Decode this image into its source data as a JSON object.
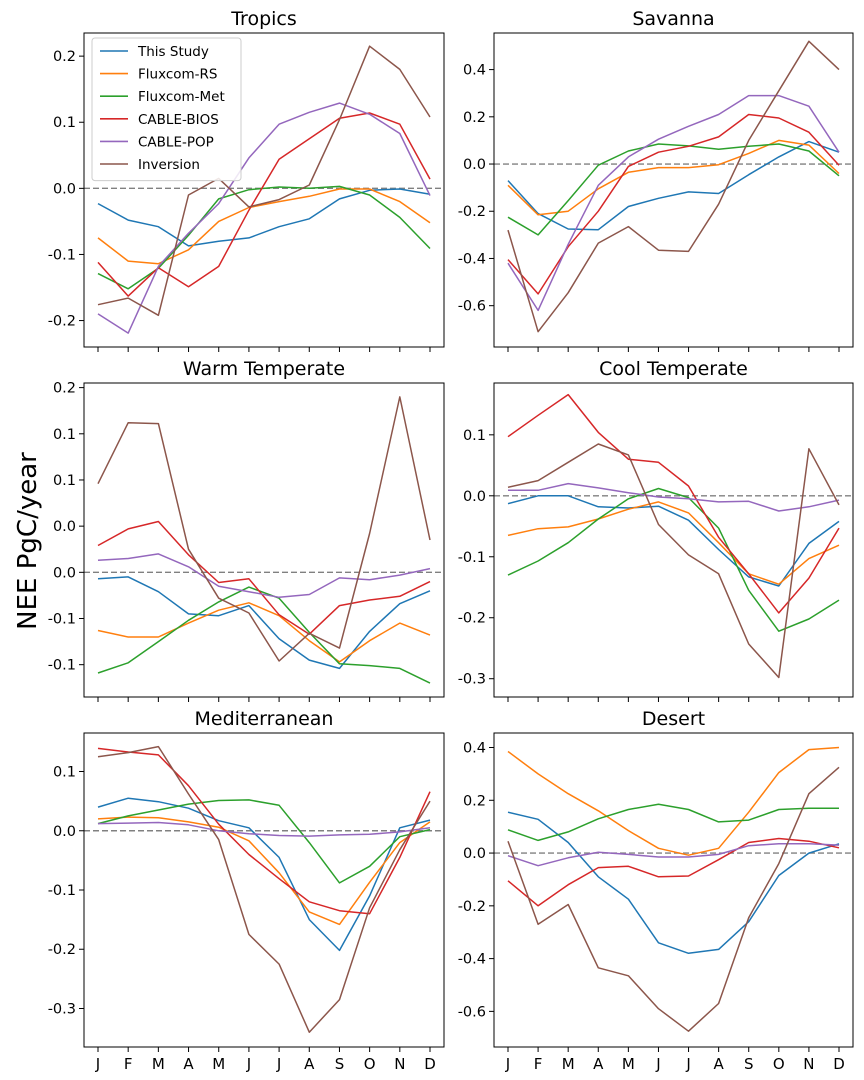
{
  "figure": {
    "ylabel": "NEE PgC/year",
    "legend_location": "upper-left of first panel"
  },
  "colors": {
    "This Study": "#1f77b4",
    "Fluxcom-RS": "#ff7f0e",
    "Fluxcom-Met": "#2ca02c",
    "CABLE-BIOS": "#d62728",
    "CABLE-POP": "#9467bd",
    "Inversion": "#8c564b",
    "zero_line": "#808080"
  },
  "chart_data": [
    {
      "type": "line",
      "title": "Tropics",
      "x": [
        "J",
        "F",
        "M",
        "A",
        "M",
        "J",
        "J",
        "A",
        "S",
        "O",
        "N",
        "D"
      ],
      "show_xticklabels": false,
      "ylim": [
        -0.24,
        0.235
      ],
      "yticks": [
        -0.2,
        -0.1,
        0.0,
        0.1,
        0.2
      ],
      "ytick_labels": [
        "-0.2",
        "-0.1",
        "0.0",
        "0.1",
        "0.2"
      ],
      "zero_line": true,
      "legend": [
        "This Study",
        "Fluxcom-RS",
        "Fluxcom-Met",
        "CABLE-BIOS",
        "CABLE-POP",
        "Inversion"
      ],
      "series": [
        {
          "name": "This Study",
          "values": [
            -0.023,
            -0.048,
            -0.058,
            -0.087,
            -0.08,
            -0.075,
            -0.058,
            -0.046,
            -0.016,
            -0.003,
            -0.001,
            -0.009
          ]
        },
        {
          "name": "Fluxcom-RS",
          "values": [
            -0.075,
            -0.11,
            -0.114,
            -0.093,
            -0.05,
            -0.029,
            -0.02,
            -0.012,
            -0.001,
            -0.001,
            -0.02,
            -0.052
          ]
        },
        {
          "name": "Fluxcom-Met",
          "values": [
            -0.129,
            -0.152,
            -0.121,
            -0.071,
            -0.016,
            -0.002,
            0.002,
            0.0,
            0.003,
            -0.01,
            -0.044,
            -0.091
          ]
        },
        {
          "name": "CABLE-BIOS",
          "values": [
            -0.112,
            -0.163,
            -0.12,
            -0.149,
            -0.118,
            -0.033,
            0.044,
            0.075,
            0.106,
            0.114,
            0.097,
            0.014
          ]
        },
        {
          "name": "CABLE-POP",
          "values": [
            -0.19,
            -0.219,
            -0.118,
            -0.068,
            -0.023,
            0.046,
            0.097,
            0.115,
            0.129,
            0.112,
            0.083,
            -0.011
          ]
        },
        {
          "name": "Inversion",
          "values": [
            -0.176,
            -0.166,
            -0.192,
            -0.01,
            0.015,
            -0.028,
            -0.017,
            0.005,
            0.104,
            0.215,
            0.18,
            0.108
          ]
        }
      ]
    },
    {
      "type": "line",
      "title": "Savanna",
      "x": [
        "J",
        "F",
        "M",
        "A",
        "M",
        "J",
        "J",
        "A",
        "S",
        "O",
        "N",
        "D"
      ],
      "show_xticklabels": false,
      "ylim": [
        -0.775,
        0.555
      ],
      "yticks": [
        -0.6,
        -0.4,
        -0.2,
        0.0,
        0.2,
        0.4
      ],
      "ytick_labels": [
        "-0.6",
        "-0.4",
        "-0.2",
        "0.0",
        "0.2",
        "0.4"
      ],
      "zero_line": true,
      "series": [
        {
          "name": "This Study",
          "values": [
            -0.07,
            -0.21,
            -0.275,
            -0.278,
            -0.18,
            -0.145,
            -0.118,
            -0.125,
            -0.045,
            0.03,
            0.095,
            0.05
          ]
        },
        {
          "name": "Fluxcom-RS",
          "values": [
            -0.09,
            -0.215,
            -0.2,
            -0.105,
            -0.035,
            -0.015,
            -0.015,
            -0.003,
            0.045,
            0.1,
            0.08,
            -0.04
          ]
        },
        {
          "name": "Fluxcom-Met",
          "values": [
            -0.225,
            -0.3,
            -0.155,
            -0.005,
            0.055,
            0.085,
            0.077,
            0.063,
            0.075,
            0.085,
            0.055,
            -0.05
          ]
        },
        {
          "name": "CABLE-BIOS",
          "values": [
            -0.405,
            -0.55,
            -0.35,
            -0.2,
            -0.01,
            0.05,
            0.075,
            0.115,
            0.21,
            0.195,
            0.135,
            -0.005
          ]
        },
        {
          "name": "CABLE-POP",
          "values": [
            -0.42,
            -0.62,
            -0.34,
            -0.09,
            0.03,
            0.105,
            0.16,
            0.21,
            0.29,
            0.29,
            0.245,
            0.05
          ]
        },
        {
          "name": "Inversion",
          "values": [
            -0.28,
            -0.71,
            -0.545,
            -0.335,
            -0.265,
            -0.365,
            -0.37,
            -0.17,
            0.1,
            0.31,
            0.52,
            0.4
          ]
        }
      ]
    },
    {
      "type": "line",
      "title": "Warm Temperate",
      "x": [
        "J",
        "F",
        "M",
        "A",
        "M",
        "J",
        "J",
        "A",
        "S",
        "O",
        "N",
        "D"
      ],
      "show_xticklabels": false,
      "ylim": [
        -0.135,
        0.205
      ],
      "yticks": [
        -0.1,
        -0.05,
        0.0,
        0.05,
        0.1,
        0.15,
        0.2
      ],
      "ytick_labels": [
        "-0.1",
        "-0.1",
        "0.0",
        "0.0",
        "0.1",
        "0.1",
        "0.2"
      ],
      "zero_line": true,
      "series": [
        {
          "name": "This Study",
          "values": [
            -0.007,
            -0.005,
            -0.021,
            -0.045,
            -0.047,
            -0.036,
            -0.072,
            -0.095,
            -0.104,
            -0.064,
            -0.034,
            -0.02
          ]
        },
        {
          "name": "Fluxcom-RS",
          "values": [
            -0.063,
            -0.07,
            -0.07,
            -0.055,
            -0.041,
            -0.033,
            -0.047,
            -0.074,
            -0.097,
            -0.074,
            -0.055,
            -0.068
          ]
        },
        {
          "name": "Fluxcom-Met",
          "values": [
            -0.109,
            -0.098,
            -0.075,
            -0.052,
            -0.032,
            -0.016,
            -0.028,
            -0.065,
            -0.099,
            -0.101,
            -0.104,
            -0.12
          ]
        },
        {
          "name": "CABLE-BIOS",
          "values": [
            0.029,
            0.047,
            0.055,
            0.019,
            -0.011,
            -0.007,
            -0.046,
            -0.067,
            -0.036,
            -0.03,
            -0.026,
            -0.01
          ]
        },
        {
          "name": "CABLE-POP",
          "values": [
            0.013,
            0.015,
            0.02,
            0.006,
            -0.015,
            -0.021,
            -0.027,
            -0.024,
            -0.006,
            -0.008,
            -0.003,
            0.004
          ]
        },
        {
          "name": "Inversion",
          "values": [
            0.096,
            0.162,
            0.161,
            0.025,
            -0.028,
            -0.044,
            -0.096,
            -0.066,
            -0.082,
            0.042,
            0.19,
            0.035
          ]
        }
      ]
    },
    {
      "type": "line",
      "title": "Cool Temperate",
      "x": [
        "J",
        "F",
        "M",
        "A",
        "M",
        "J",
        "J",
        "A",
        "S",
        "O",
        "N",
        "D"
      ],
      "show_xticklabels": false,
      "ylim": [
        -0.33,
        0.185
      ],
      "yticks": [
        -0.3,
        -0.2,
        -0.1,
        0.0,
        0.1
      ],
      "ytick_labels": [
        "-0.3",
        "-0.2",
        "-0.1",
        "0.0",
        "0.1"
      ],
      "zero_line": true,
      "series": [
        {
          "name": "This Study",
          "values": [
            -0.013,
            0.0,
            0.0,
            -0.018,
            -0.02,
            -0.017,
            -0.04,
            -0.088,
            -0.133,
            -0.148,
            -0.078,
            -0.042
          ]
        },
        {
          "name": "Fluxcom-RS",
          "values": [
            -0.065,
            -0.054,
            -0.051,
            -0.038,
            -0.022,
            -0.01,
            -0.028,
            -0.077,
            -0.128,
            -0.145,
            -0.103,
            -0.081
          ]
        },
        {
          "name": "Fluxcom-Met",
          "values": [
            -0.13,
            -0.107,
            -0.077,
            -0.038,
            -0.005,
            0.012,
            -0.003,
            -0.053,
            -0.155,
            -0.222,
            -0.202,
            -0.171
          ]
        },
        {
          "name": "CABLE-BIOS",
          "values": [
            0.097,
            0.132,
            0.166,
            0.104,
            0.06,
            0.055,
            0.016,
            -0.068,
            -0.128,
            -0.192,
            -0.135,
            -0.053
          ]
        },
        {
          "name": "CABLE-POP",
          "values": [
            0.009,
            0.009,
            0.02,
            0.013,
            0.005,
            -0.002,
            -0.005,
            -0.01,
            -0.009,
            -0.025,
            -0.018,
            -0.007
          ]
        },
        {
          "name": "Inversion",
          "values": [
            0.014,
            0.025,
            0.055,
            0.085,
            0.067,
            -0.047,
            -0.097,
            -0.128,
            -0.243,
            -0.298,
            0.077,
            -0.015
          ]
        }
      ]
    },
    {
      "type": "line",
      "title": "Mediterranean",
      "x": [
        "J",
        "F",
        "M",
        "A",
        "M",
        "J",
        "J",
        "A",
        "S",
        "O",
        "N",
        "D"
      ],
      "show_xticklabels": true,
      "ylim": [
        -0.365,
        0.165
      ],
      "yticks": [
        -0.3,
        -0.2,
        -0.1,
        0.0,
        0.1
      ],
      "ytick_labels": [
        "-0.3",
        "-0.2",
        "-0.1",
        "0.0",
        "0.1"
      ],
      "zero_line": true,
      "series": [
        {
          "name": "This Study",
          "values": [
            0.04,
            0.055,
            0.049,
            0.038,
            0.017,
            0.005,
            -0.045,
            -0.15,
            -0.202,
            -0.11,
            0.005,
            0.018
          ]
        },
        {
          "name": "Fluxcom-RS",
          "values": [
            0.02,
            0.023,
            0.022,
            0.015,
            0.006,
            -0.017,
            -0.071,
            -0.137,
            -0.158,
            -0.087,
            -0.02,
            0.015
          ]
        },
        {
          "name": "Fluxcom-Met",
          "values": [
            0.012,
            0.025,
            0.035,
            0.045,
            0.051,
            0.052,
            0.043,
            -0.02,
            -0.088,
            -0.06,
            -0.01,
            0.002
          ]
        },
        {
          "name": "CABLE-BIOS",
          "values": [
            0.139,
            0.133,
            0.128,
            0.076,
            0.011,
            -0.04,
            -0.081,
            -0.12,
            -0.135,
            -0.14,
            -0.045,
            0.066
          ]
        },
        {
          "name": "CABLE-POP",
          "values": [
            0.012,
            0.013,
            0.014,
            0.01,
            0.0,
            -0.005,
            -0.008,
            -0.009,
            -0.007,
            -0.006,
            -0.002,
            0.005
          ]
        },
        {
          "name": "Inversion",
          "values": [
            0.125,
            0.132,
            0.142,
            0.062,
            -0.015,
            -0.175,
            -0.225,
            -0.34,
            -0.285,
            -0.13,
            -0.032,
            0.05
          ]
        }
      ]
    },
    {
      "type": "line",
      "title": "Desert",
      "x": [
        "J",
        "F",
        "M",
        "A",
        "M",
        "J",
        "J",
        "A",
        "S",
        "O",
        "N",
        "D"
      ],
      "show_xticklabels": true,
      "ylim": [
        -0.735,
        0.455
      ],
      "yticks": [
        -0.6,
        -0.4,
        -0.2,
        0.0,
        0.2,
        0.4
      ],
      "ytick_labels": [
        "-0.6",
        "-0.4",
        "-0.2",
        "0.0",
        "0.2",
        "0.4"
      ],
      "zero_line": true,
      "series": [
        {
          "name": "This Study",
          "values": [
            0.155,
            0.128,
            0.04,
            -0.09,
            -0.175,
            -0.34,
            -0.38,
            -0.365,
            -0.26,
            -0.085,
            0.0,
            0.035
          ]
        },
        {
          "name": "Fluxcom-RS",
          "values": [
            0.385,
            0.3,
            0.225,
            0.16,
            0.085,
            0.018,
            -0.008,
            0.018,
            0.155,
            0.305,
            0.392,
            0.4
          ]
        },
        {
          "name": "Fluxcom-Met",
          "values": [
            0.088,
            0.048,
            0.08,
            0.13,
            0.165,
            0.185,
            0.165,
            0.118,
            0.125,
            0.165,
            0.17,
            0.17
          ]
        },
        {
          "name": "CABLE-BIOS",
          "values": [
            -0.105,
            -0.2,
            -0.12,
            -0.055,
            -0.05,
            -0.09,
            -0.087,
            -0.025,
            0.04,
            0.055,
            0.045,
            0.02
          ]
        },
        {
          "name": "CABLE-POP",
          "values": [
            -0.01,
            -0.048,
            -0.018,
            0.003,
            -0.005,
            -0.015,
            -0.015,
            -0.005,
            0.028,
            0.035,
            0.035,
            0.03
          ]
        },
        {
          "name": "Inversion",
          "values": [
            0.045,
            -0.27,
            -0.195,
            -0.435,
            -0.465,
            -0.59,
            -0.675,
            -0.57,
            -0.245,
            -0.04,
            0.225,
            0.325
          ]
        }
      ]
    }
  ]
}
